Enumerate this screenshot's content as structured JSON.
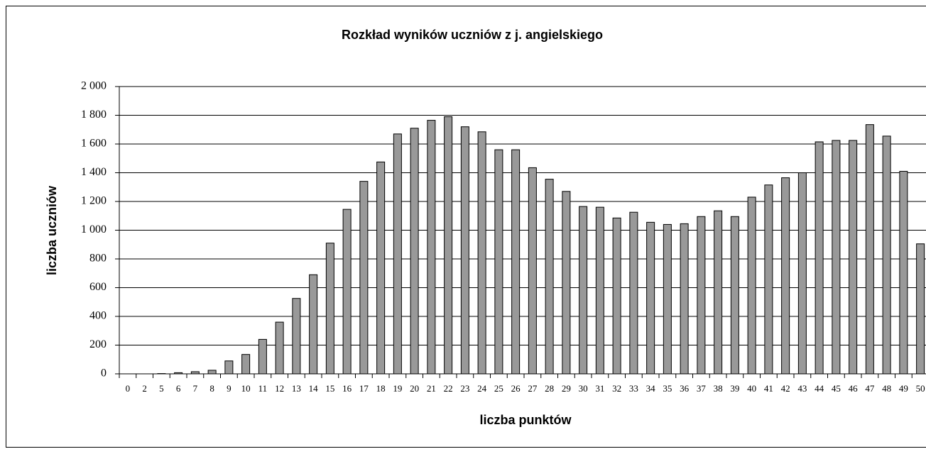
{
  "chart_data": {
    "type": "bar",
    "title": "Rozkład wyników uczniów z j. angielskiego",
    "x_label": "liczba punktów",
    "y_label": "liczba uczniów",
    "categories": [
      "0",
      "2",
      "5",
      "6",
      "7",
      "8",
      "9",
      "10",
      "11",
      "12",
      "13",
      "14",
      "15",
      "16",
      "17",
      "18",
      "19",
      "20",
      "21",
      "22",
      "23",
      "24",
      "25",
      "26",
      "27",
      "28",
      "29",
      "30",
      "31",
      "32",
      "33",
      "34",
      "35",
      "36",
      "37",
      "38",
      "39",
      "40",
      "41",
      "42",
      "43",
      "44",
      "45",
      "46",
      "47",
      "48",
      "49",
      "50"
    ],
    "values": [
      0,
      0,
      2,
      8,
      15,
      25,
      90,
      135,
      240,
      360,
      525,
      690,
      910,
      1145,
      1340,
      1475,
      1670,
      1710,
      1765,
      1790,
      1720,
      1685,
      1560,
      1560,
      1435,
      1355,
      1270,
      1165,
      1160,
      1085,
      1125,
      1055,
      1040,
      1045,
      1095,
      1135,
      1095,
      1230,
      1315,
      1365,
      1400,
      1615,
      1625,
      1625,
      1735,
      1655,
      1410,
      905
    ],
    "color": "#999999",
    "ylim": [
      0,
      2000
    ],
    "yticks": [
      0,
      200,
      400,
      600,
      800,
      {
        "value": 1000,
        "label": "1 000"
      },
      {
        "value": 1200,
        "label": "1 200"
      },
      {
        "value": 1400,
        "label": "1 400"
      },
      {
        "value": 1600,
        "label": "1 600"
      },
      {
        "value": 1800,
        "label": "1 800"
      },
      {
        "value": 2000,
        "label": "2 000"
      }
    ],
    "grid": true
  }
}
